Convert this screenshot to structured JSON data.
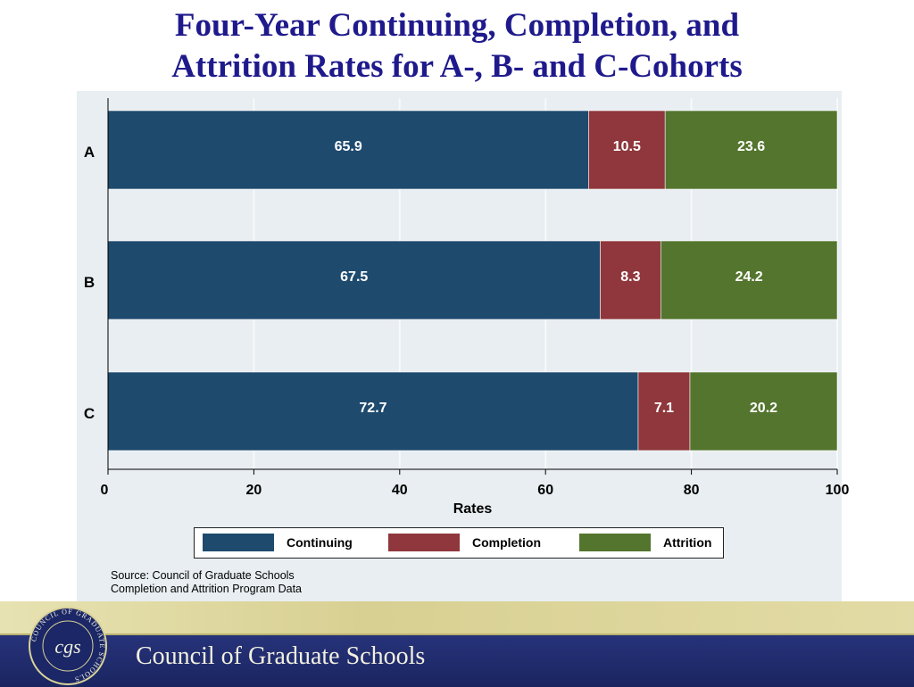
{
  "title": {
    "line1": "Four-Year Continuing, Completion, and",
    "line2": "Attrition Rates for A-, B- and C-Cohorts"
  },
  "chart_data": {
    "type": "bar",
    "orientation": "horizontal",
    "stacked": true,
    "categories": [
      "A",
      "B",
      "C"
    ],
    "series": [
      {
        "name": "Continuing",
        "values": [
          65.9,
          67.5,
          72.7
        ],
        "color": "#1e4a6e"
      },
      {
        "name": "Completion",
        "values": [
          10.5,
          8.3,
          7.1
        ],
        "color": "#8f373c"
      },
      {
        "name": "Attrition",
        "values": [
          23.6,
          24.2,
          20.2
        ],
        "color": "#54752e"
      }
    ],
    "xlabel": "Rates",
    "xlim": [
      0,
      100
    ],
    "xticks": [
      0,
      20,
      40,
      60,
      80,
      100
    ],
    "grid": true,
    "legend_position": "bottom"
  },
  "source": {
    "line1": "Source: Council of Graduate Schools",
    "line2": "Completion and Attrition Program Data"
  },
  "footer": {
    "org_name": "Council of Graduate Schools",
    "seal_text": "COUNCIL OF GRADUATE SCHOOLS",
    "seal_monogram": "cgs"
  },
  "colors": {
    "title": "#1f1a8c",
    "panel_background": "#e8eef1",
    "footer_gold": "#d9d29a",
    "footer_navy": "#1f2a6b"
  }
}
